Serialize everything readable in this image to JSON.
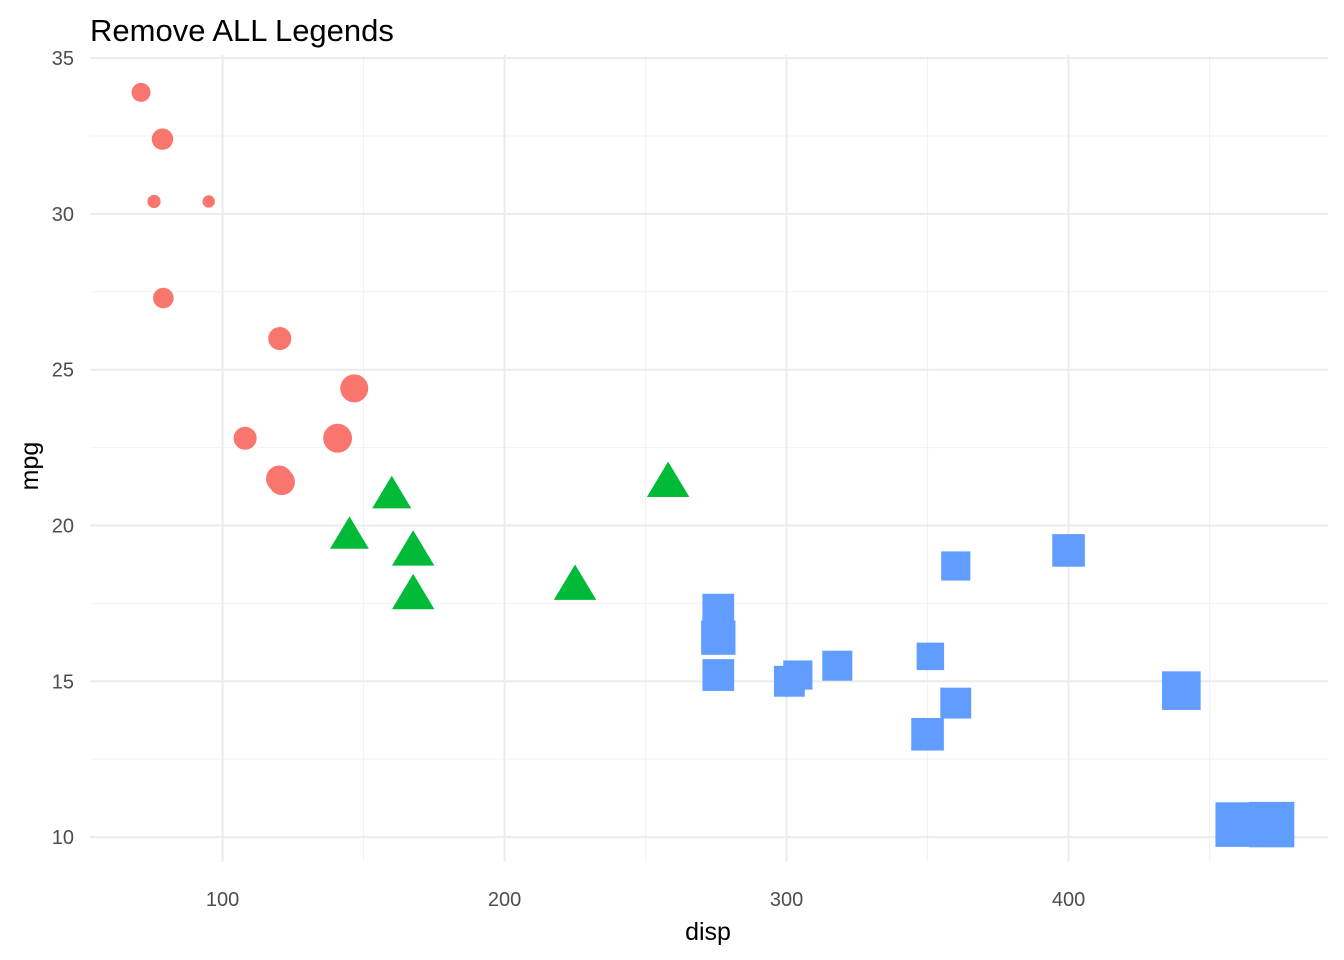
{
  "chart_data": {
    "type": "scatter",
    "title": "Remove ALL Legends",
    "xlabel": "disp",
    "ylabel": "mpg",
    "xlim": [
      53,
      492
    ],
    "ylim": [
      9.2,
      35.1
    ],
    "xticks": [
      100,
      200,
      300,
      400
    ],
    "yticks": [
      10,
      15,
      20,
      25,
      30,
      35
    ],
    "grid": true,
    "legend": "none",
    "colors": {
      "cyl4": "#F8766D",
      "cyl6": "#00BA38",
      "cyl8": "#619CFF"
    },
    "series": [
      {
        "shape": "circle",
        "color": "#F8766D",
        "points": [
          {
            "x": 71.1,
            "y": 33.9,
            "s": 2.3
          },
          {
            "x": 78.7,
            "y": 32.4,
            "s": 2.6
          },
          {
            "x": 75.7,
            "y": 30.4,
            "s": 1.6
          },
          {
            "x": 95.1,
            "y": 30.4,
            "s": 1.5
          },
          {
            "x": 79.0,
            "y": 27.3,
            "s": 2.5
          },
          {
            "x": 120.3,
            "y": 26.0,
            "s": 2.8
          },
          {
            "x": 146.7,
            "y": 24.4,
            "s": 3.4
          },
          {
            "x": 108.0,
            "y": 22.8,
            "s": 2.8
          },
          {
            "x": 140.8,
            "y": 22.8,
            "s": 3.5
          },
          {
            "x": 120.1,
            "y": 21.5,
            "s": 3.2
          },
          {
            "x": 121.0,
            "y": 21.4,
            "s": 3.2
          }
        ]
      },
      {
        "shape": "triangle",
        "color": "#00BA38",
        "points": [
          {
            "x": 258.0,
            "y": 21.4,
            "s": 3.5
          },
          {
            "x": 160.0,
            "y": 21.0,
            "s": 3.2
          },
          {
            "x": 160.0,
            "y": 21.0,
            "s": 3.2
          },
          {
            "x": 145.0,
            "y": 19.7,
            "s": 3.2
          },
          {
            "x": 167.6,
            "y": 19.2,
            "s": 3.5
          },
          {
            "x": 225.0,
            "y": 18.1,
            "s": 3.5
          },
          {
            "x": 167.6,
            "y": 17.8,
            "s": 3.5
          }
        ]
      },
      {
        "shape": "square",
        "color": "#619CFF",
        "points": [
          {
            "x": 400.0,
            "y": 19.2,
            "s": 3.8
          },
          {
            "x": 360.0,
            "y": 18.7,
            "s": 3.4
          },
          {
            "x": 275.8,
            "y": 17.3,
            "s": 3.7
          },
          {
            "x": 275.8,
            "y": 16.4,
            "s": 4.0
          },
          {
            "x": 318.0,
            "y": 15.5,
            "s": 3.5
          },
          {
            "x": 304.0,
            "y": 15.2,
            "s": 3.4
          },
          {
            "x": 275.8,
            "y": 15.2,
            "s": 3.7
          },
          {
            "x": 301.0,
            "y": 15.0,
            "s": 3.6
          },
          {
            "x": 351.0,
            "y": 15.8,
            "s": 3.2
          },
          {
            "x": 440.0,
            "y": 14.7,
            "s": 4.5
          },
          {
            "x": 360.0,
            "y": 14.3,
            "s": 3.6
          },
          {
            "x": 350.0,
            "y": 13.3,
            "s": 3.8
          },
          {
            "x": 460.0,
            "y": 10.4,
            "s": 5.2
          },
          {
            "x": 472.0,
            "y": 10.4,
            "s": 5.3
          }
        ]
      }
    ]
  }
}
